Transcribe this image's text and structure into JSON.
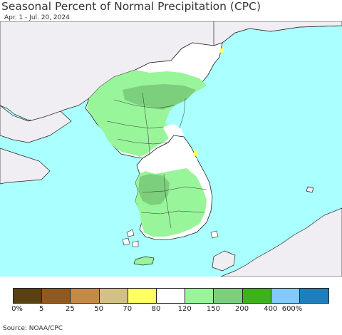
{
  "title": "Seasonal Percent of Normal Precipitation (CPC)",
  "subtitle": "Apr. 1 - Jul. 20, 2024",
  "source": "Source: NOAA/CPC",
  "colors": {
    "ocean": "#aaffff",
    "land_outside": "#f0eef2",
    "normal": "#ffffff",
    "above_120": "#99f59a",
    "above_150": "#7ccf7d",
    "yellow_70": "#ffff66"
  },
  "legend": {
    "swatches": [
      {
        "color": "#5a4012"
      },
      {
        "color": "#8f5a22"
      },
      {
        "color": "#c48a45"
      },
      {
        "color": "#d2c085"
      },
      {
        "color": "#ffff66"
      },
      {
        "color": "#ffffff"
      },
      {
        "color": "#99f59a"
      },
      {
        "color": "#7ccf7d"
      },
      {
        "color": "#3cb319"
      },
      {
        "color": "#82c9ff"
      },
      {
        "color": "#1e7fbe"
      }
    ],
    "ticks": [
      "0%",
      "5",
      "25",
      "50",
      "70",
      "80",
      "120",
      "150",
      "200",
      "400",
      "600%"
    ]
  }
}
